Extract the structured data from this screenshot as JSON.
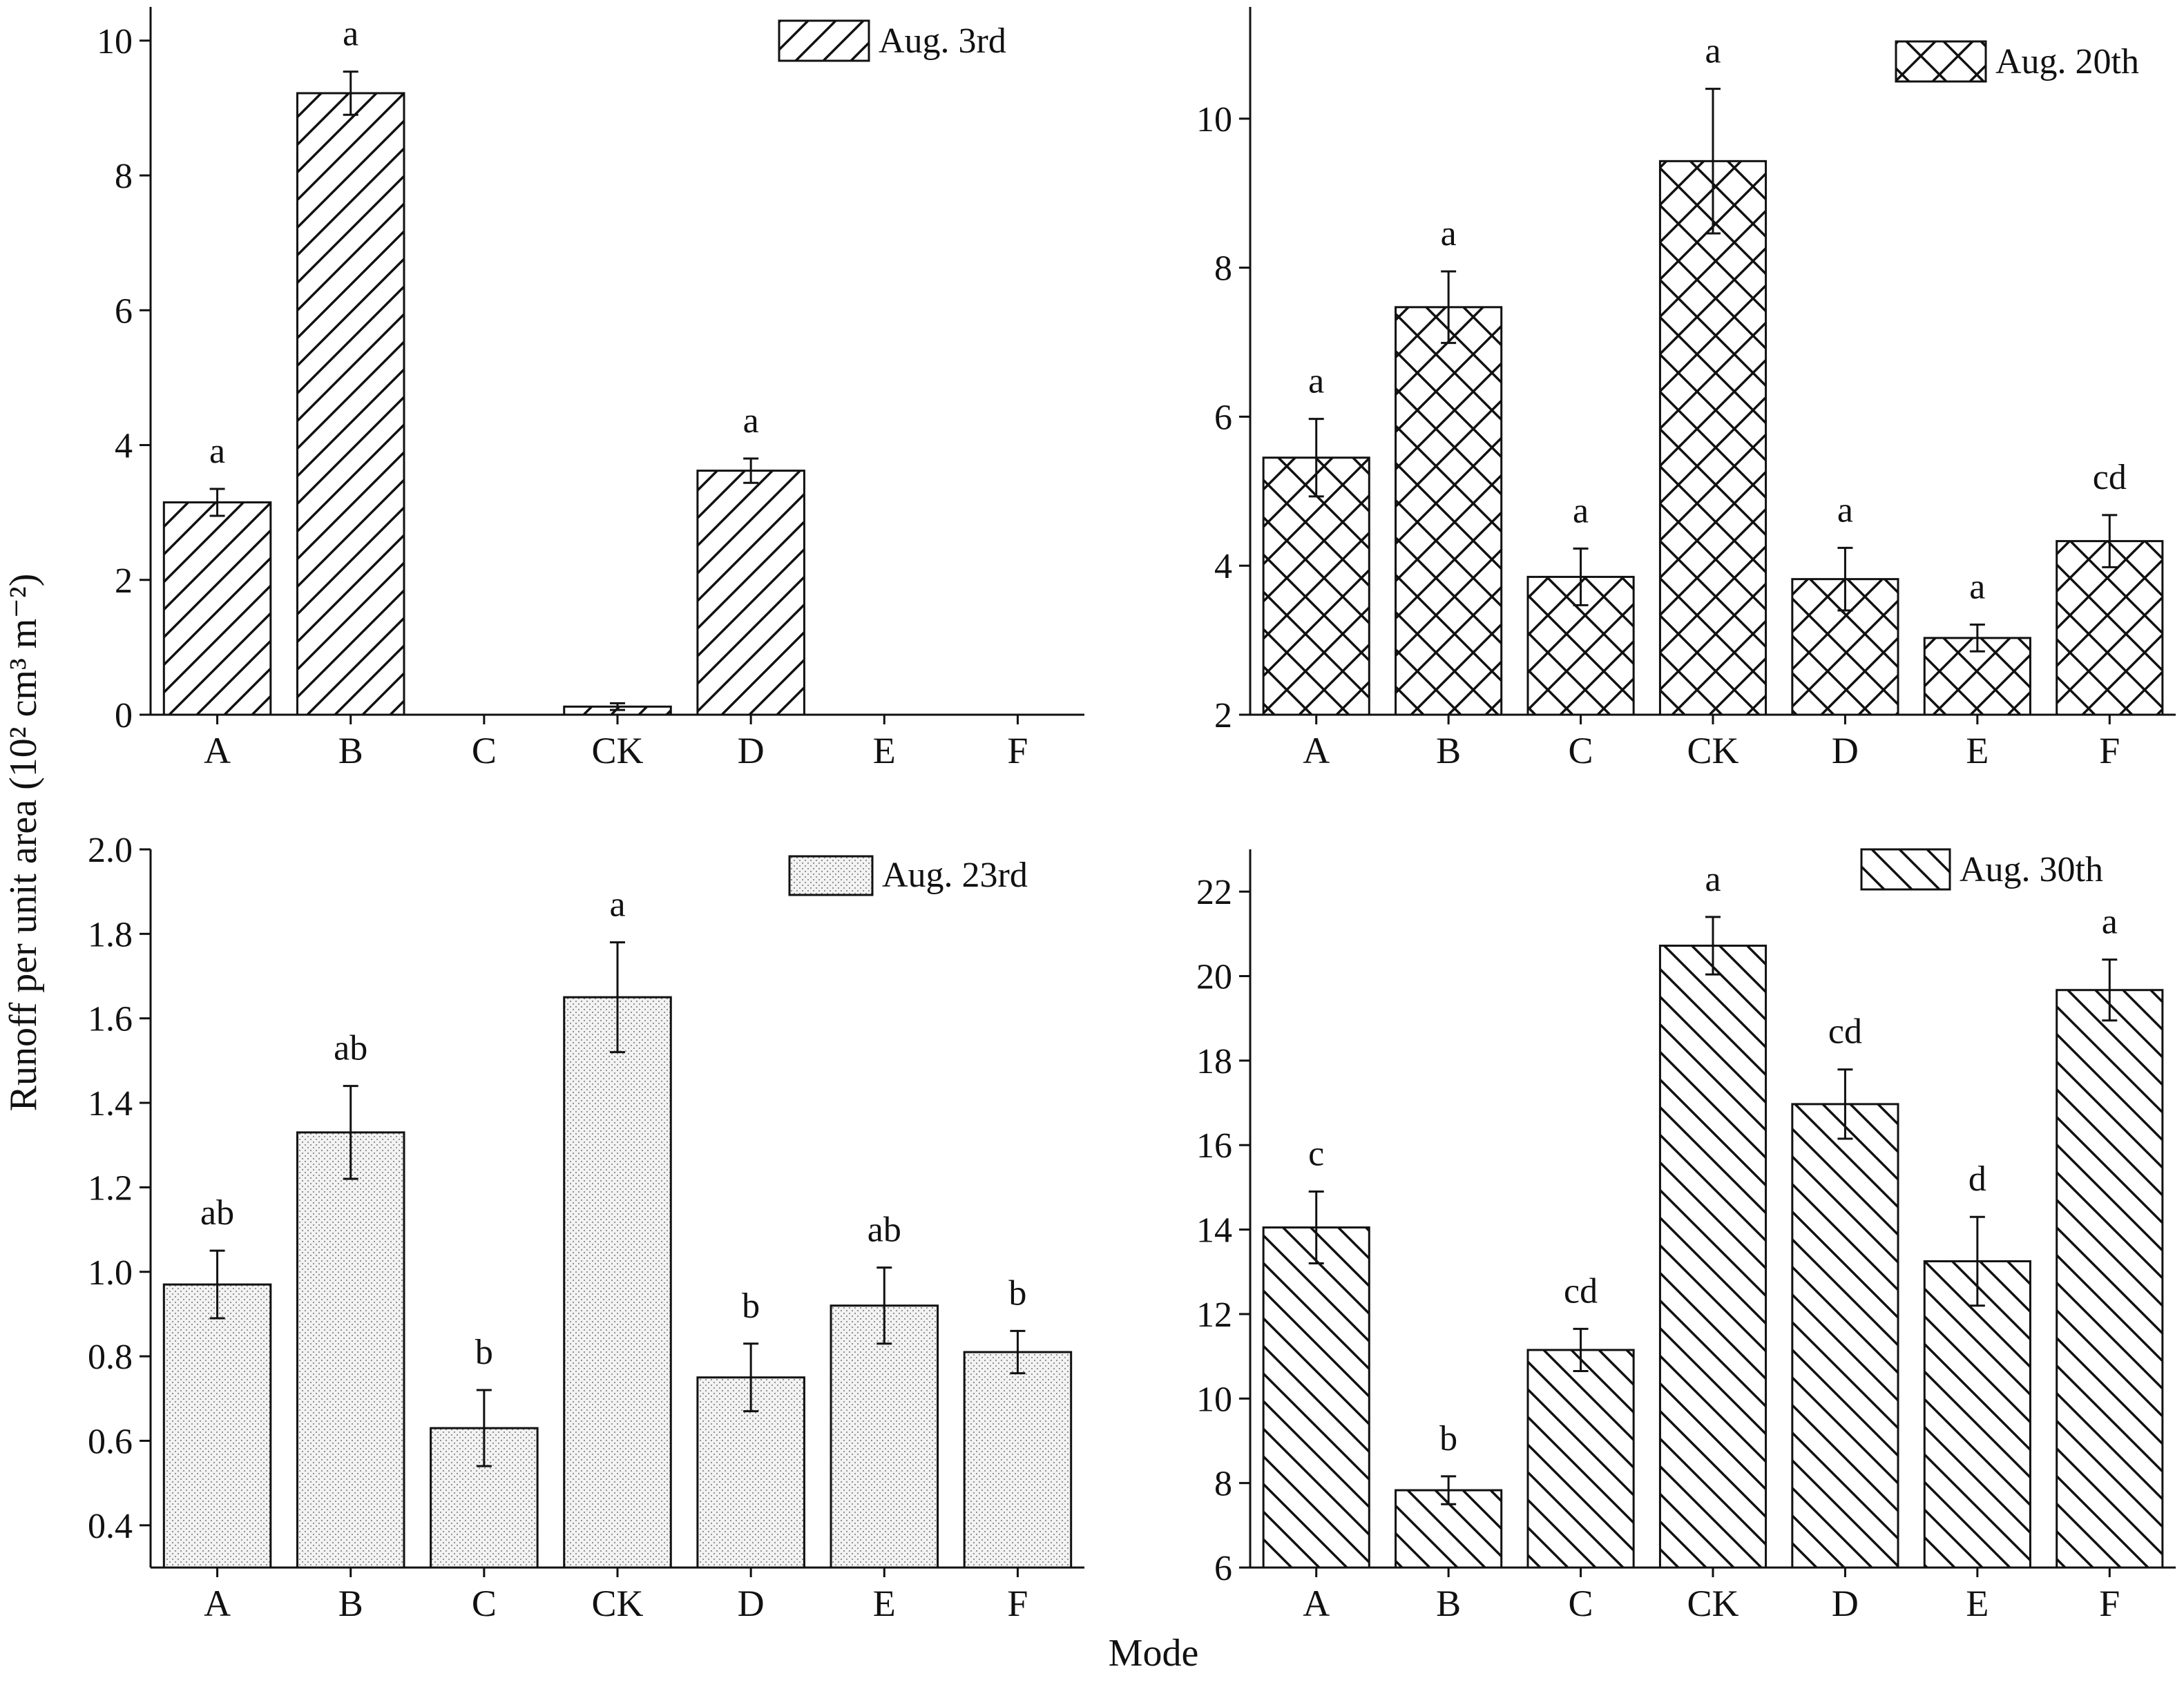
{
  "figure": {
    "ylabel": "Runoff per unit area (10² cm³ m⁻²)",
    "xlabel": "Mode"
  },
  "chart_data": [
    {
      "type": "bar",
      "legend": "Aug. 3rd",
      "legend_position": "top-right",
      "pattern": "hatch-forward",
      "categories": [
        "A",
        "B",
        "C",
        "CK",
        "D",
        "E",
        "F"
      ],
      "values": [
        3.15,
        9.22,
        0,
        0.12,
        3.62,
        0,
        0
      ],
      "errors": [
        0.2,
        0.32,
        0,
        0.05,
        0.18,
        0,
        0
      ],
      "significance": [
        "a",
        "a",
        "",
        "",
        "a",
        "",
        ""
      ],
      "ylim": [
        0,
        10.5
      ],
      "yticks": [
        0,
        2,
        4,
        6,
        8,
        10
      ],
      "ytick_labels": [
        "0",
        "2",
        "4",
        "6",
        "8",
        "10"
      ]
    },
    {
      "type": "bar",
      "legend": "Aug. 20th",
      "legend_position": "top-right",
      "pattern": "crosshatch",
      "categories": [
        "A",
        "B",
        "C",
        "CK",
        "D",
        "E",
        "F"
      ],
      "values": [
        5.45,
        7.47,
        3.85,
        9.43,
        3.82,
        3.03,
        4.33
      ],
      "errors": [
        0.52,
        0.48,
        0.38,
        0.97,
        0.42,
        0.18,
        0.35
      ],
      "significance": [
        "a",
        "a",
        "a",
        "a",
        "a",
        "a",
        "cd"
      ],
      "ylim": [
        2,
        11.5
      ],
      "yticks": [
        2,
        4,
        6,
        8,
        10
      ],
      "ytick_labels": [
        "2",
        "4",
        "6",
        "8",
        "10"
      ]
    },
    {
      "type": "bar",
      "legend": "Aug. 23rd",
      "legend_position": "top-right",
      "pattern": "dots",
      "categories": [
        "A",
        "B",
        "C",
        "CK",
        "D",
        "E",
        "F"
      ],
      "values": [
        0.97,
        1.33,
        0.63,
        1.65,
        0.75,
        0.92,
        0.81
      ],
      "errors": [
        0.08,
        0.11,
        0.09,
        0.13,
        0.08,
        0.09,
        0.05
      ],
      "significance": [
        "ab",
        "ab",
        "b",
        "a",
        "b",
        "ab",
        "b"
      ],
      "ylim": [
        0.3,
        2.0
      ],
      "yticks": [
        0.4,
        0.6,
        0.8,
        1.0,
        1.2,
        1.4,
        1.6,
        1.8,
        2.0
      ],
      "ytick_labels": [
        "0.4",
        "0.6",
        "0.8",
        "1.0",
        "1.2",
        "1.4",
        "1.6",
        "1.8",
        "2.0"
      ]
    },
    {
      "type": "bar",
      "legend": "Aug. 30th",
      "legend_position": "top-right",
      "pattern": "hatch-backward",
      "categories": [
        "A",
        "B",
        "C",
        "CK",
        "D",
        "E",
        "F"
      ],
      "values": [
        14.05,
        7.83,
        11.15,
        20.72,
        16.97,
        13.25,
        19.67
      ],
      "errors": [
        0.85,
        0.33,
        0.5,
        0.68,
        0.82,
        1.05,
        0.72
      ],
      "significance": [
        "c",
        "b",
        "cd",
        "a",
        "cd",
        "d",
        "a"
      ],
      "ylim": [
        6,
        23
      ],
      "yticks": [
        6,
        8,
        10,
        12,
        14,
        16,
        18,
        20,
        22
      ],
      "ytick_labels": [
        "6",
        "8",
        "10",
        "12",
        "14",
        "16",
        "18",
        "20",
        "22"
      ]
    }
  ]
}
